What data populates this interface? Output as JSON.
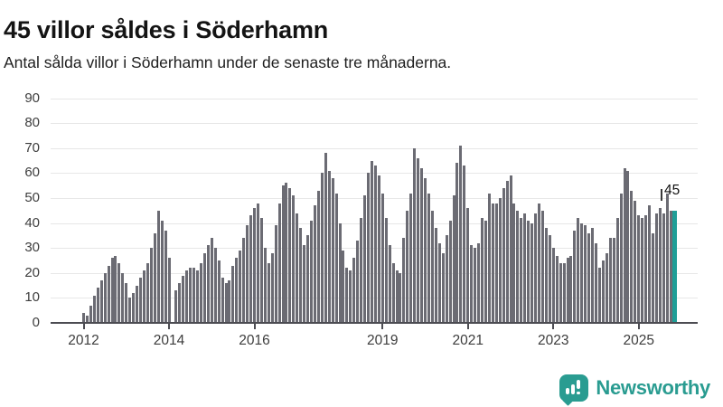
{
  "header": {
    "title": "45 villor såldes i Söderhamn",
    "subtitle": "Antal sålda villor i Söderhamn under de senaste tre månaderna."
  },
  "chart_data": {
    "type": "bar",
    "title": "45 villor såldes i Söderhamn",
    "subtitle": "Antal sålda villor i Söderhamn under de senaste tre månaderna.",
    "description": "Monthly rolling three-month count of houses sold, Jan 2012 - latest period; final (current) bar highlighted in teal and labeled 45.",
    "ylim": [
      0,
      95
    ],
    "grid": true,
    "y_ticks": [
      0,
      10,
      20,
      30,
      40,
      50,
      60,
      70,
      80,
      90
    ],
    "x_ticks": [
      {
        "label": "2012",
        "month_index": 0
      },
      {
        "label": "2014",
        "month_index": 24
      },
      {
        "label": "2016",
        "month_index": 48
      },
      {
        "label": "2019",
        "month_index": 84
      },
      {
        "label": "2021",
        "month_index": 108
      },
      {
        "label": "2023",
        "month_index": 132
      },
      {
        "label": "2025",
        "month_index": 156
      }
    ],
    "years": [
      {
        "year": 2012,
        "monthly": [
          4,
          3,
          7,
          11,
          14,
          17,
          20,
          23,
          26,
          27,
          24,
          20
        ]
      },
      {
        "year": 2013,
        "monthly": [
          16,
          10,
          12,
          15,
          18,
          21,
          24,
          30,
          36,
          45,
          41,
          37
        ]
      },
      {
        "year": 2014,
        "monthly": [
          26,
          0,
          13,
          16,
          19,
          21,
          22,
          22,
          21,
          24,
          28,
          31
        ]
      },
      {
        "year": 2015,
        "monthly": [
          34,
          30,
          25,
          18,
          16,
          17,
          23,
          26,
          29,
          34,
          39,
          43
        ]
      },
      {
        "year": 2016,
        "monthly": [
          46,
          48,
          42,
          30,
          24,
          28,
          39,
          48,
          55,
          56,
          54,
          51
        ]
      },
      {
        "year": 2017,
        "monthly": [
          44,
          38,
          31,
          35,
          41,
          47,
          53,
          60,
          68,
          61,
          58,
          52
        ]
      },
      {
        "year": 2018,
        "monthly": [
          40,
          29,
          22,
          21,
          26,
          33,
          42,
          51,
          60,
          65,
          63,
          59
        ]
      },
      {
        "year": 2019,
        "monthly": [
          52,
          42,
          31,
          24,
          21,
          20,
          34,
          45,
          52,
          70,
          66,
          62
        ]
      },
      {
        "year": 2020,
        "monthly": [
          58,
          52,
          45,
          38,
          32,
          28,
          35,
          41,
          51,
          64,
          71,
          63
        ]
      },
      {
        "year": 2021,
        "monthly": [
          46,
          31,
          30,
          32,
          42,
          41,
          52,
          48,
          48,
          50,
          54,
          57
        ]
      },
      {
        "year": 2022,
        "monthly": [
          59,
          48,
          45,
          42,
          44,
          41,
          40,
          44,
          48,
          45,
          38,
          35
        ]
      },
      {
        "year": 2023,
        "monthly": [
          30,
          27,
          24,
          24,
          26,
          27,
          37,
          42,
          40,
          39,
          36,
          38
        ]
      },
      {
        "year": 2024,
        "monthly": [
          32,
          22,
          25,
          28,
          34,
          34,
          42,
          52,
          62,
          61,
          53,
          49
        ]
      },
      {
        "year": 2025,
        "monthly": [
          43,
          42,
          43,
          47,
          36,
          44,
          46,
          44,
          52,
          45,
          45
        ]
      }
    ],
    "highlight": {
      "position": "last",
      "value": 45,
      "label": "45"
    },
    "colors": {
      "bar": "#6b6b73",
      "highlight": "#1f9e97",
      "grid": "#e7e7e7",
      "axis": "#4c4c52",
      "tick_text": "#3d3d3d"
    },
    "legend": null,
    "annotation": {
      "label": "45"
    }
  },
  "footer": {
    "logo_text": "Newsworthy",
    "logo_color": "#2a9c91",
    "logo_icon": "bar-chart-speech-bubble"
  }
}
